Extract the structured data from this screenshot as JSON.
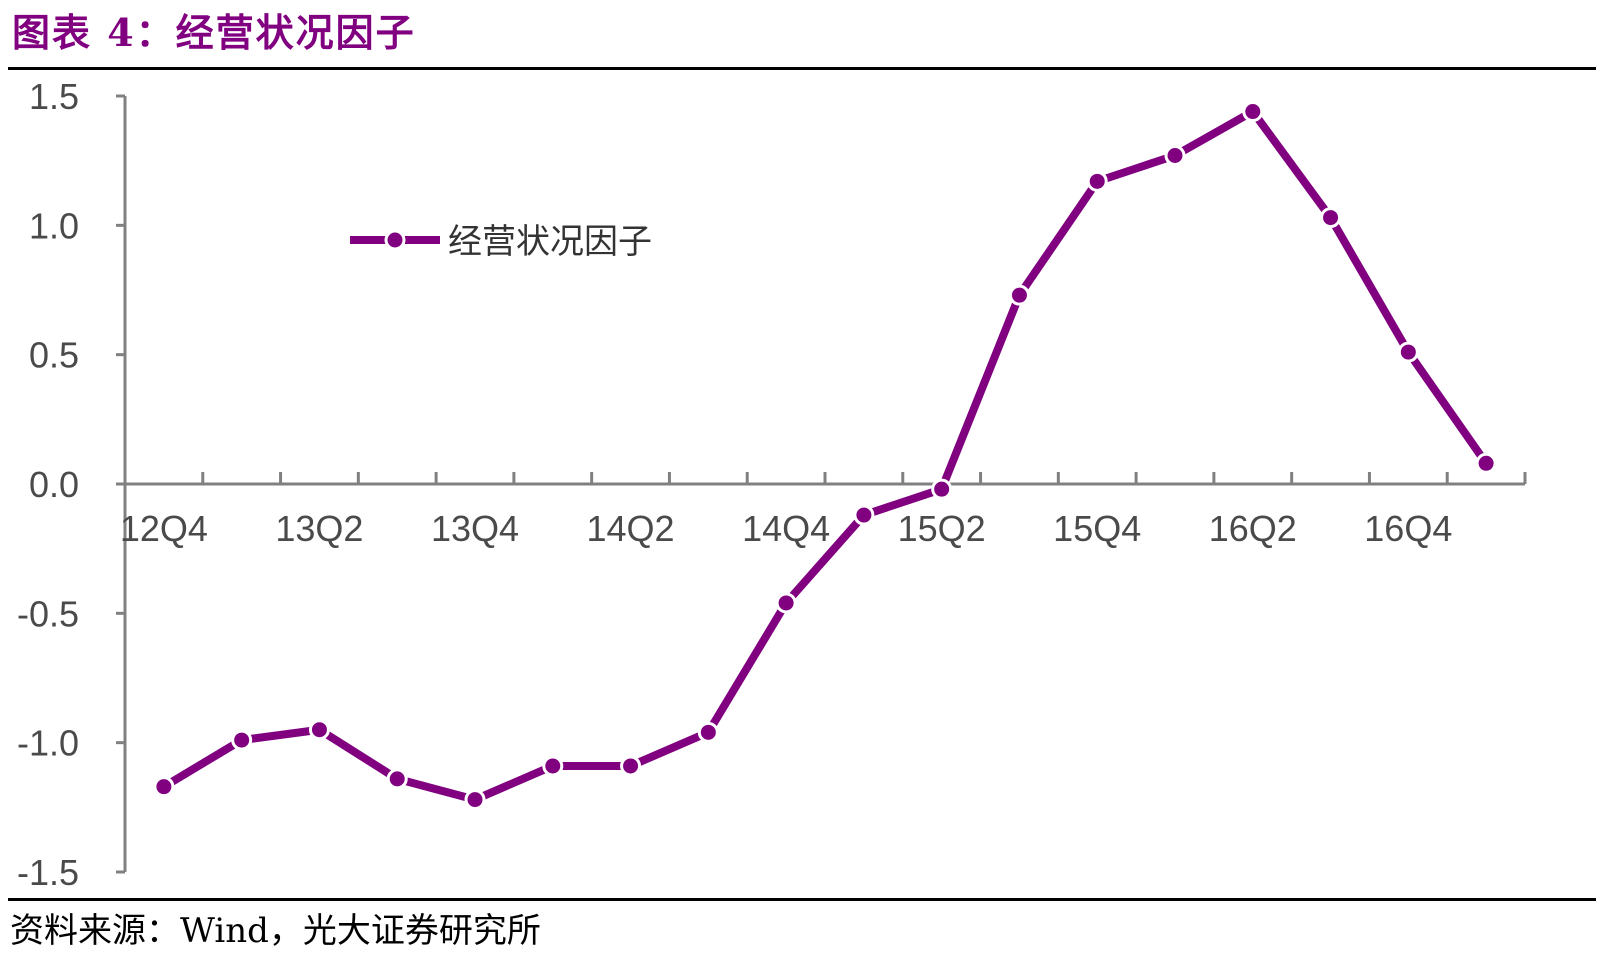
{
  "figure_title": "图表 4：经营状况因子",
  "source_note": "资料来源：Wind，光大证券研究所",
  "colors": {
    "series": "#800080",
    "title": "#800080",
    "axis": "#808080"
  },
  "chart_data": {
    "type": "line",
    "title": "",
    "xlabel": "",
    "ylabel": "",
    "x": [
      "12Q4",
      "13Q1",
      "13Q2",
      "13Q3",
      "13Q4",
      "14Q1",
      "14Q2",
      "14Q3",
      "14Q4",
      "15Q1",
      "15Q2",
      "15Q3",
      "15Q4",
      "16Q1",
      "16Q2",
      "16Q3",
      "16Q4",
      "17Q1"
    ],
    "x_tick_labels": [
      "12Q4",
      "13Q2",
      "13Q4",
      "14Q2",
      "14Q4",
      "15Q2",
      "15Q4",
      "16Q2",
      "16Q4"
    ],
    "ylim": [
      -1.5,
      1.5
    ],
    "y_ticks": [
      "1.5",
      "1.0",
      "0.5",
      "0.0",
      "-0.5",
      "-1.0",
      "-1.5"
    ],
    "legend_position": "top-left",
    "grid": false,
    "series": [
      {
        "name": "经营状况因子",
        "values": [
          -1.17,
          -0.99,
          -0.95,
          -1.14,
          -1.22,
          -1.09,
          -1.09,
          -0.96,
          -0.46,
          -0.12,
          -0.02,
          0.73,
          1.17,
          1.27,
          1.44,
          1.03,
          0.51,
          0.08
        ]
      }
    ]
  }
}
